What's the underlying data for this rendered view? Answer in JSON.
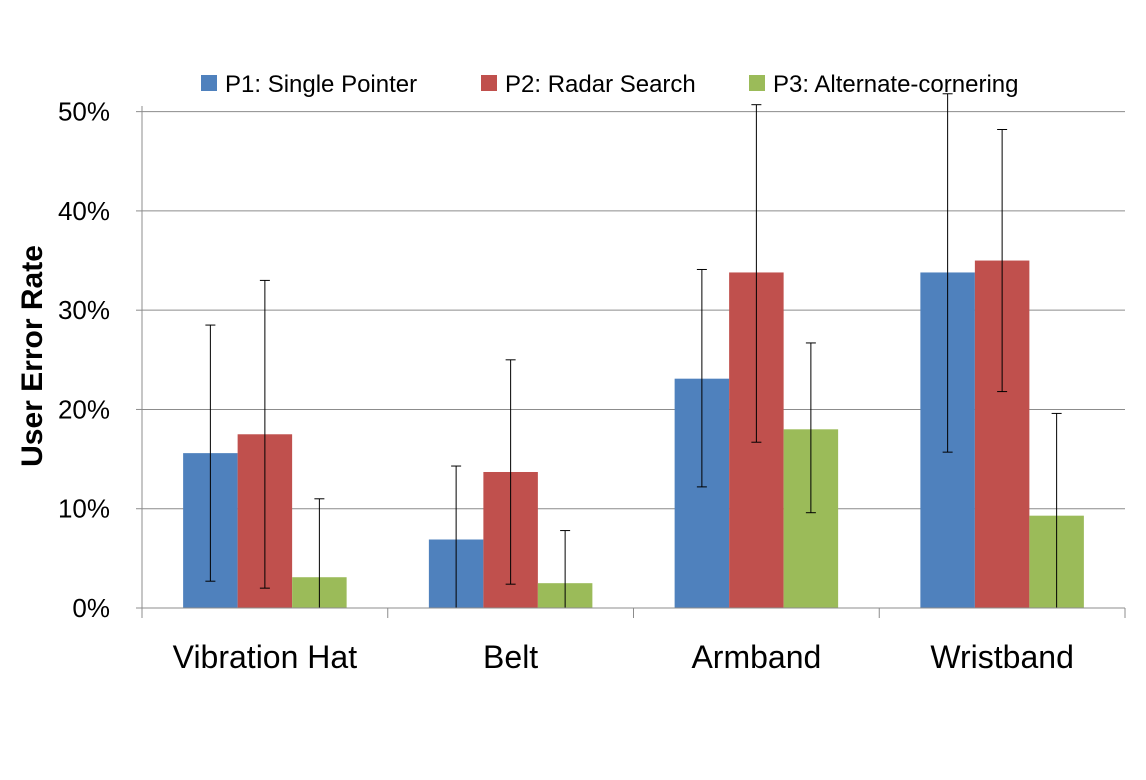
{
  "chart_data": {
    "type": "bar",
    "title": "",
    "xlabel": "",
    "ylabel": "User Error Rate",
    "ylim": [
      0,
      0.55
    ],
    "y_ticks": [
      0,
      0.1,
      0.2,
      0.3,
      0.4,
      0.5
    ],
    "y_tick_labels": [
      "0%",
      "10%",
      "20%",
      "30%",
      "40%",
      "50%"
    ],
    "grid": true,
    "legend_position": "top",
    "categories": [
      "Vibration Hat",
      "Belt",
      "Armband",
      "Wristband"
    ],
    "series": [
      {
        "name": "P1: Single Pointer",
        "color": "#4F81BD",
        "values": [
          0.156,
          0.069,
          0.231,
          0.338
        ],
        "error_low": [
          0.027,
          0.0,
          0.122,
          0.157
        ],
        "error_high": [
          0.285,
          0.143,
          0.341,
          0.518
        ]
      },
      {
        "name": "P2: Radar Search",
        "color": "#C0504D",
        "values": [
          0.175,
          0.137,
          0.338,
          0.35
        ],
        "error_low": [
          0.02,
          0.024,
          0.167,
          0.218
        ],
        "error_high": [
          0.33,
          0.25,
          0.507,
          0.482
        ]
      },
      {
        "name": "P3: Alternate-cornering",
        "color": "#9BBB59",
        "values": [
          0.031,
          0.025,
          0.18,
          0.093
        ],
        "error_low": [
          0.0,
          0.0,
          0.096,
          0.0
        ],
        "error_high": [
          0.11,
          0.078,
          0.267,
          0.196
        ]
      }
    ]
  }
}
